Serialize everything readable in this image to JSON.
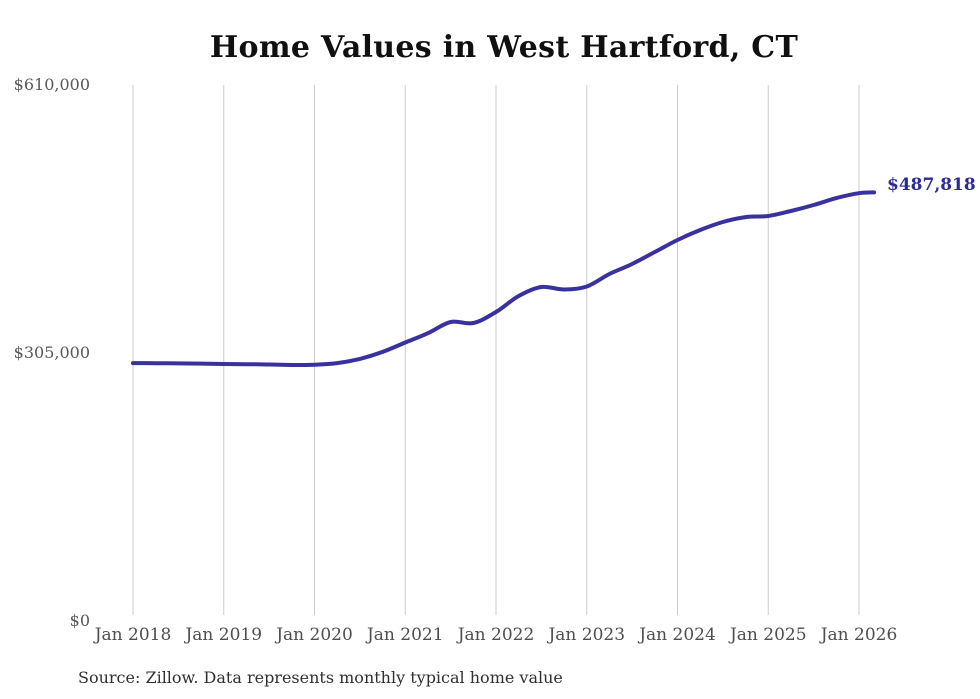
{
  "title": "Home Values in West Hartford, CT",
  "source_note": "Source: Zillow. Data represents monthly typical home value",
  "end_label": "$487,818",
  "colors": {
    "line": "#38329e",
    "end_label": "#2c2a96",
    "gridline": "#cbcbcb",
    "title": "#101010",
    "axis_text": "#545454",
    "source_text": "#303030"
  },
  "y_axis": {
    "ticks": [
      {
        "label": "$610,000",
        "value": 610000
      },
      {
        "label": "$305,000",
        "value": 305000
      },
      {
        "label": "$0",
        "value": 0
      }
    ]
  },
  "x_axis": {
    "ticks": [
      "Jan 2018",
      "Jan 2019",
      "Jan 2020",
      "Jan 2021",
      "Jan 2022",
      "Jan 2023",
      "Jan 2024",
      "Jan 2025",
      "Jan 2026"
    ]
  },
  "chart_data": {
    "type": "line",
    "title": "Home Values in West Hartford, CT",
    "xlabel": "",
    "ylabel": "",
    "ylim": [
      0,
      610000
    ],
    "grid": "vertical-only",
    "legend": "none",
    "line_style": "smooth",
    "end_annotation": {
      "text": "$487,818",
      "value": 487818
    },
    "series": [
      {
        "name": "Monthly typical home value",
        "points": [
          [
            "2018-01",
            293500
          ],
          [
            "2018-04",
            293400
          ],
          [
            "2018-07",
            293200
          ],
          [
            "2018-10",
            292900
          ],
          [
            "2019-01",
            292500
          ],
          [
            "2019-04",
            292300
          ],
          [
            "2019-07",
            291900
          ],
          [
            "2019-10",
            291400
          ],
          [
            "2020-01",
            291700
          ],
          [
            "2020-04",
            293500
          ],
          [
            "2020-07",
            298300
          ],
          [
            "2020-10",
            306200
          ],
          [
            "2021-01",
            316900
          ],
          [
            "2021-04",
            327500
          ],
          [
            "2021-07",
            340300
          ],
          [
            "2021-10",
            339100
          ],
          [
            "2022-01",
            351700
          ],
          [
            "2022-04",
            369900
          ],
          [
            "2022-07",
            380100
          ],
          [
            "2022-10",
            377300
          ],
          [
            "2023-01",
            380700
          ],
          [
            "2023-04",
            394900
          ],
          [
            "2023-07",
            406300
          ],
          [
            "2023-10",
            419900
          ],
          [
            "2024-01",
            433600
          ],
          [
            "2024-04",
            445000
          ],
          [
            "2024-07",
            454100
          ],
          [
            "2024-10",
            459700
          ],
          [
            "2025-01",
            460900
          ],
          [
            "2025-04",
            466600
          ],
          [
            "2025-07",
            473400
          ],
          [
            "2025-10",
            481300
          ],
          [
            "2026-01",
            486900
          ],
          [
            "2026-03",
            487818
          ]
        ]
      }
    ]
  }
}
